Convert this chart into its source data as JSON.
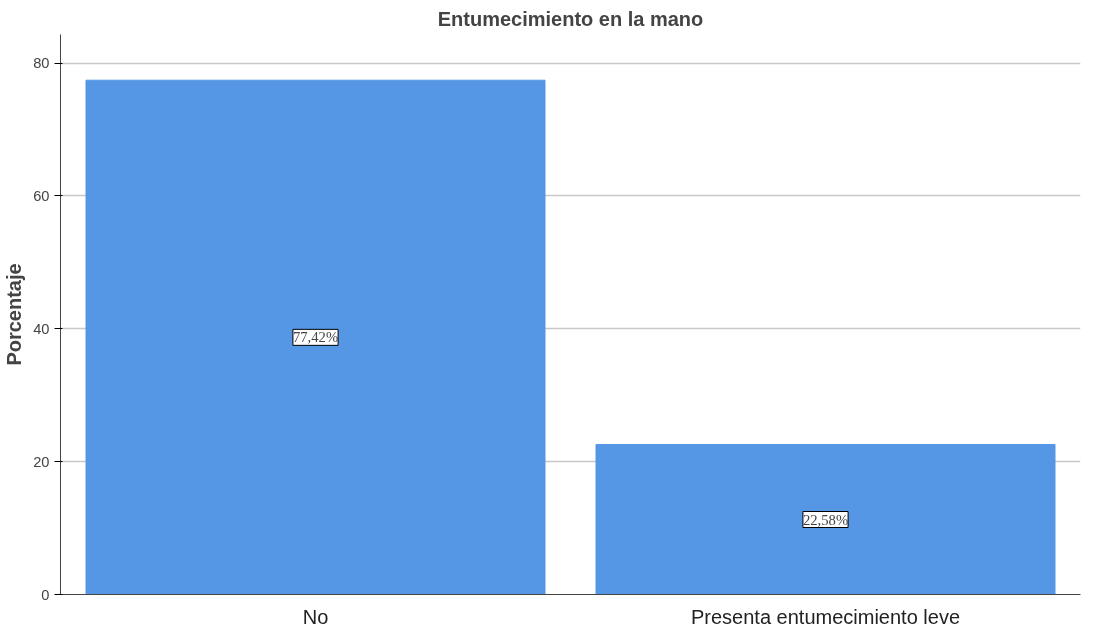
{
  "chart_data": {
    "type": "bar",
    "title": "Entumecimiento en la mano",
    "ylabel": "Porcentaje",
    "categories": [
      "No",
      "Presenta entumecimiento leve"
    ],
    "values": [
      77.42,
      22.58
    ],
    "value_labels": [
      "77,42%",
      "22,58%"
    ],
    "color": "#5596e5",
    "ylim": [
      0,
      84.3
    ],
    "yticks": [
      0,
      20,
      40,
      60,
      80
    ],
    "grid": "y"
  }
}
